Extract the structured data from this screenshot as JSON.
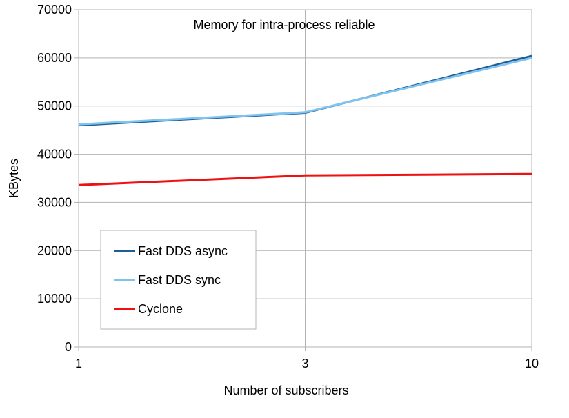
{
  "chart_data": {
    "type": "line",
    "title": "Memory for intra-process reliable",
    "xlabel": "Number of subscribers",
    "ylabel": "KBytes",
    "categories": [
      "1",
      "3",
      "10"
    ],
    "ylim": [
      0,
      70000
    ],
    "yticks": [
      0,
      10000,
      20000,
      30000,
      40000,
      50000,
      60000,
      70000
    ],
    "grid": true,
    "legend_position": "bottom-left",
    "series": [
      {
        "name": "Fast DDS async",
        "color": "#1f5e95",
        "values": [
          46000,
          48600,
          60400
        ]
      },
      {
        "name": "Fast DDS sync",
        "color": "#7fc4f0",
        "values": [
          46200,
          48700,
          60000
        ]
      },
      {
        "name": "Cyclone",
        "color": "#ee1111",
        "values": [
          33600,
          35600,
          35900
        ]
      }
    ]
  }
}
